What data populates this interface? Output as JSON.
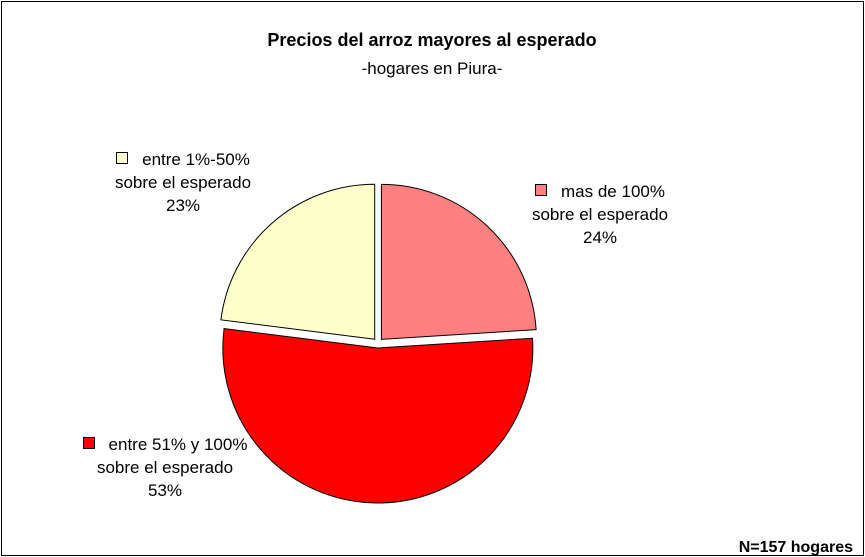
{
  "chart_data": {
    "type": "pie",
    "title": "Precios del arroz mayores al esperado",
    "subtitle": "-hogares en Piura-",
    "categories": [
      "mas de 100% sobre el esperado",
      "entre 51% y 100% sobre el esperado",
      "entre 1%-50% sobre el esperado"
    ],
    "values": [
      24,
      53,
      23
    ],
    "value_labels": [
      "24%",
      "53%",
      "23%"
    ],
    "colors": [
      "#ff8080",
      "#ff0000",
      "#ffffcc"
    ],
    "annotation": "N=157 hogares"
  }
}
